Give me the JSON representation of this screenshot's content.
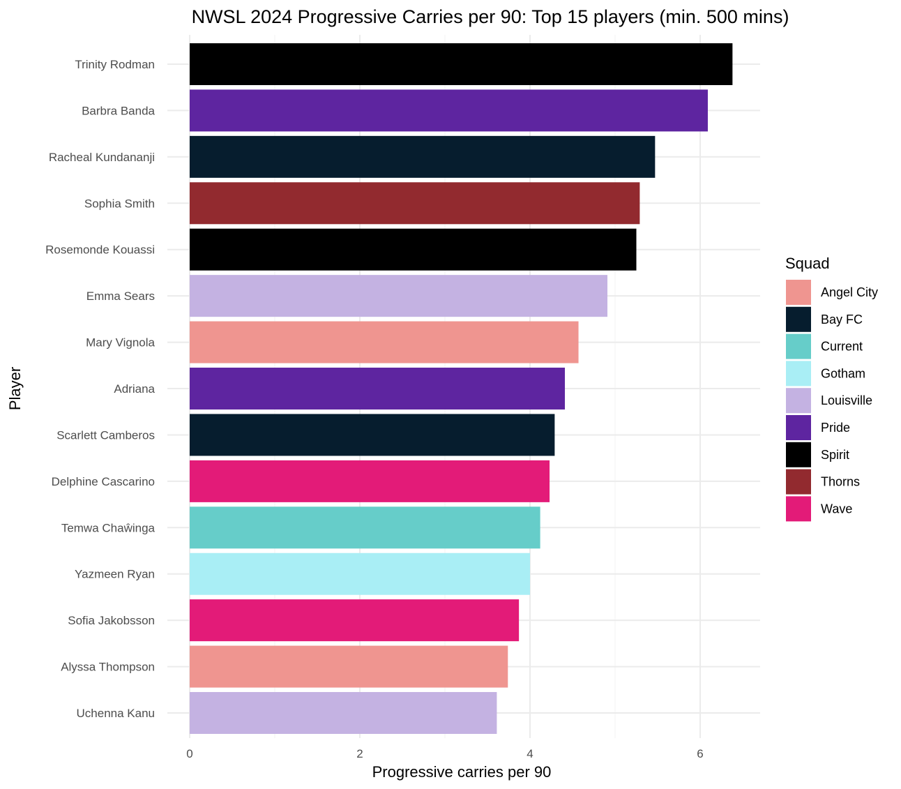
{
  "chart_data": {
    "type": "bar",
    "orientation": "horizontal",
    "title": "NWSL 2024 Progressive Carries per 90: Top 15 players (min. 500 mins)",
    "xlabel": "Progressive carries per 90",
    "ylabel": "Player",
    "xlim": [
      0,
      6.7
    ],
    "xticks": [
      0,
      2,
      4,
      6
    ],
    "grid": true,
    "legend": {
      "title": "Squad",
      "placement": "right",
      "entries": [
        {
          "name": "Angel City",
          "color": "#ef9590"
        },
        {
          "name": "Bay FC",
          "color": "#061d2e"
        },
        {
          "name": "Current",
          "color": "#66cdc9"
        },
        {
          "name": "Gotham",
          "color": "#a9eef5"
        },
        {
          "name": "Louisville",
          "color": "#c4b2e2"
        },
        {
          "name": "Pride",
          "color": "#5e25a0"
        },
        {
          "name": "Spirit",
          "color": "#000000"
        },
        {
          "name": "Thorns",
          "color": "#922a2f"
        },
        {
          "name": "Wave",
          "color": "#e31b78"
        }
      ]
    },
    "bars": [
      {
        "player": "Trinity Rodman",
        "value": 6.38,
        "squad": "Spirit"
      },
      {
        "player": "Barbra Banda",
        "value": 6.09,
        "squad": "Pride"
      },
      {
        "player": "Racheal Kundananji",
        "value": 5.47,
        "squad": "Bay FC"
      },
      {
        "player": "Sophia Smith",
        "value": 5.29,
        "squad": "Thorns"
      },
      {
        "player": "Rosemonde Kouassi",
        "value": 5.25,
        "squad": "Spirit"
      },
      {
        "player": "Emma Sears",
        "value": 4.91,
        "squad": "Louisville"
      },
      {
        "player": "Mary Vignola",
        "value": 4.57,
        "squad": "Angel City"
      },
      {
        "player": "Adriana",
        "value": 4.41,
        "squad": "Pride"
      },
      {
        "player": "Scarlett Camberos",
        "value": 4.29,
        "squad": "Bay FC"
      },
      {
        "player": "Delphine Cascarino",
        "value": 4.23,
        "squad": "Wave"
      },
      {
        "player": "Temwa Chaŵinga",
        "value": 4.12,
        "squad": "Current"
      },
      {
        "player": "Yazmeen Ryan",
        "value": 4.0,
        "squad": "Gotham"
      },
      {
        "player": "Sofia Jakobsson",
        "value": 3.87,
        "squad": "Wave"
      },
      {
        "player": "Alyssa Thompson",
        "value": 3.74,
        "squad": "Angel City"
      },
      {
        "player": "Uchenna Kanu",
        "value": 3.61,
        "squad": "Louisville"
      }
    ]
  }
}
